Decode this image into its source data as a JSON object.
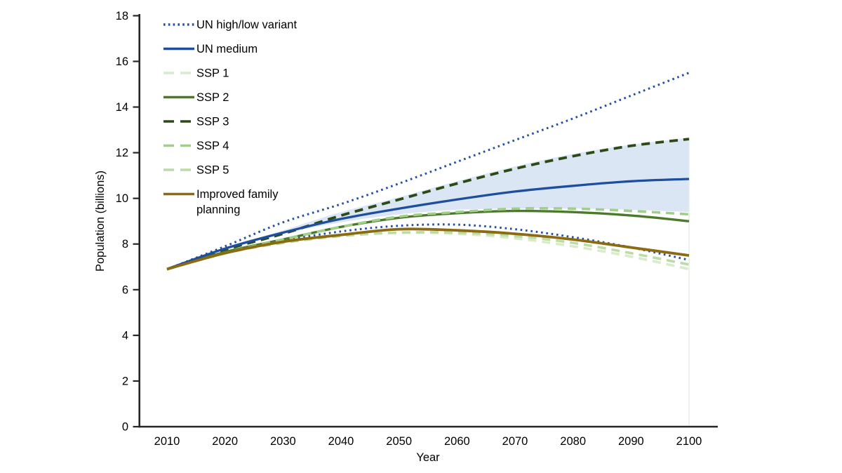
{
  "figure": {
    "background": "#ffffff"
  },
  "chart_data": {
    "type": "line",
    "title": "",
    "xlabel": "Year",
    "ylabel": "Population (billions)",
    "xlim": [
      2010,
      2100
    ],
    "ylim": [
      0,
      18
    ],
    "x_ticks": [
      2010,
      2020,
      2030,
      2040,
      2050,
      2060,
      2070,
      2080,
      2090,
      2100
    ],
    "y_ticks": [
      0,
      2,
      4,
      6,
      8,
      10,
      12,
      14,
      16,
      18
    ],
    "grid": false,
    "legend_position": "inside-top-left",
    "axis_color": "#262626",
    "text_color": "#000000",
    "x": [
      2010,
      2020,
      2030,
      2040,
      2050,
      2060,
      2070,
      2080,
      2090,
      2100
    ],
    "series": [
      {
        "name": "UN high variant",
        "legend": "UN high/low variant",
        "color": "#2550a2",
        "style": "dotted",
        "width": 3.0,
        "values": [
          6.9,
          7.9,
          8.95,
          9.75,
          10.65,
          11.6,
          12.55,
          13.5,
          14.5,
          15.5
        ]
      },
      {
        "name": "UN low variant",
        "legend": "UN high/low variant",
        "color": "#2550a2",
        "style": "dotted",
        "width": 3.0,
        "values": [
          6.9,
          7.65,
          8.15,
          8.55,
          8.8,
          8.85,
          8.65,
          8.3,
          7.85,
          7.3
        ]
      },
      {
        "name": "SSP 1",
        "color": "#d9ecca",
        "style": "dashed",
        "width": 3.6,
        "values": [
          6.9,
          7.6,
          8.05,
          8.35,
          8.5,
          8.45,
          8.25,
          7.9,
          7.45,
          6.9
        ]
      },
      {
        "name": "SSP 5",
        "color": "#bcdca6",
        "style": "dashed",
        "width": 3.6,
        "values": [
          6.9,
          7.6,
          8.05,
          8.35,
          8.5,
          8.5,
          8.35,
          8.05,
          7.6,
          7.1
        ]
      },
      {
        "name": "SSP 3",
        "color": "#2c4a17",
        "style": "dashed",
        "width": 3.8,
        "values": [
          6.9,
          7.75,
          8.45,
          9.25,
          9.95,
          10.65,
          11.3,
          11.85,
          12.3,
          12.6
        ]
      },
      {
        "name": "SSP 2",
        "color": "#4b7a2b",
        "style": "solid",
        "width": 3.4,
        "values": [
          6.9,
          7.65,
          8.2,
          8.75,
          9.15,
          9.35,
          9.45,
          9.4,
          9.25,
          9.0
        ]
      },
      {
        "name": "SSP 4",
        "color": "#a1cf8b",
        "style": "dashed",
        "width": 3.6,
        "values": [
          6.9,
          7.6,
          8.2,
          8.75,
          9.2,
          9.4,
          9.55,
          9.55,
          9.45,
          9.3
        ]
      },
      {
        "name": "UN medium",
        "color": "#1f4e9c",
        "style": "solid",
        "width": 3.3,
        "values": [
          6.9,
          7.8,
          8.5,
          9.1,
          9.55,
          9.95,
          10.3,
          10.55,
          10.75,
          10.85
        ]
      },
      {
        "name": "Improved family planning",
        "color": "#8c6b10",
        "style": "solid",
        "width": 3.8,
        "values": [
          6.9,
          7.6,
          8.1,
          8.4,
          8.65,
          8.6,
          8.45,
          8.2,
          7.85,
          7.5
        ]
      }
    ],
    "band": {
      "fill": "#dbe6f4",
      "edge_color": "#e7ece3",
      "x": [
        2020,
        2030,
        2040,
        2050,
        2060,
        2070,
        2080,
        2090,
        2100
      ],
      "top": [
        7.85,
        8.6,
        9.4,
        10.05,
        10.75,
        11.4,
        11.95,
        12.35,
        12.65
      ],
      "bottom": [
        7.75,
        8.45,
        8.95,
        9.3,
        9.5,
        9.55,
        9.55,
        9.5,
        9.4
      ]
    },
    "legend": [
      {
        "label": "UN high/low variant",
        "color": "#2550a2",
        "style": "dotted"
      },
      {
        "label": "UN medium",
        "color": "#1f4e9c",
        "style": "solid"
      },
      {
        "label": "SSP 1",
        "color": "#d9ecca",
        "style": "dashed"
      },
      {
        "label": "SSP 2",
        "color": "#4b7a2b",
        "style": "solid"
      },
      {
        "label": "SSP 3",
        "color": "#2c4a17",
        "style": "dashed"
      },
      {
        "label": "SSP 4",
        "color": "#a1cf8b",
        "style": "dashed"
      },
      {
        "label": "SSP 5",
        "color": "#bcdca6",
        "style": "dashed"
      },
      {
        "label": "Improved family planning",
        "lines": [
          "Improved family",
          "planning"
        ],
        "color": "#8c6b10",
        "style": "solid"
      }
    ]
  }
}
